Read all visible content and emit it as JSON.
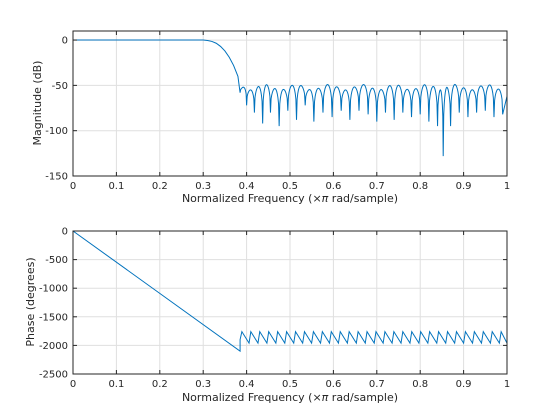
{
  "chart_data": [
    {
      "type": "line",
      "xlabel_parts": [
        "Normalized Frequency  (",
        "×π",
        " rad/sample)"
      ],
      "ylabel": "Magnitude (dB)",
      "xlim": [
        0,
        1
      ],
      "ylim": [
        -150,
        10
      ],
      "xticks": [
        0,
        0.1,
        0.2,
        0.3,
        0.4,
        0.5,
        0.6,
        0.7,
        0.8,
        0.9,
        1
      ],
      "xtick_labels": [
        "0",
        "0.1",
        "0.2",
        "0.3",
        "0.4",
        "0.5",
        "0.6",
        "0.7",
        "0.8",
        "0.9",
        "1"
      ],
      "yticks": [
        -150,
        -100,
        -50,
        0
      ],
      "ytick_labels": [
        "-150",
        "-100",
        "-50",
        "0"
      ],
      "grid": true,
      "series_color": "#0072bd",
      "passband": {
        "x": [
          0,
          0.3
        ],
        "y": 0
      },
      "transition": {
        "x": [
          0.3,
          0.31,
          0.32,
          0.33,
          0.34,
          0.35,
          0.36,
          0.37,
          0.38,
          0.385
        ],
        "y": [
          0,
          -0.5,
          -1.5,
          -3.5,
          -7,
          -12,
          -19,
          -28,
          -40,
          -58
        ]
      },
      "stopband_minima": {
        "x": [
          0.385,
          0.4,
          0.418,
          0.437,
          0.455,
          0.475,
          0.495,
          0.515,
          0.535,
          0.555,
          0.576,
          0.597,
          0.618,
          0.638,
          0.659,
          0.68,
          0.7,
          0.72,
          0.74,
          0.76,
          0.78,
          0.8,
          0.82,
          0.84,
          0.853,
          0.87,
          0.89,
          0.91,
          0.93,
          0.95,
          0.97,
          0.99
        ],
        "y": [
          -58,
          -72,
          -80,
          -92,
          -80,
          -95,
          -78,
          -88,
          -72,
          -90,
          -80,
          -85,
          -78,
          -88,
          -78,
          -82,
          -90,
          -80,
          -88,
          -80,
          -85,
          -82,
          -90,
          -95,
          -128,
          -95,
          -80,
          -85,
          -80,
          -78,
          -85,
          -82
        ]
      },
      "stopband_peak_db": -52
    },
    {
      "type": "line",
      "xlabel_parts": [
        "Normalized Frequency  (",
        "×π",
        " rad/sample)"
      ],
      "ylabel": "Phase (degrees)",
      "xlim": [
        0,
        1
      ],
      "ylim": [
        -2500,
        0
      ],
      "xticks": [
        0,
        0.1,
        0.2,
        0.3,
        0.4,
        0.5,
        0.6,
        0.7,
        0.8,
        0.9,
        1
      ],
      "xtick_labels": [
        "0",
        "0.1",
        "0.2",
        "0.3",
        "0.4",
        "0.5",
        "0.6",
        "0.7",
        "0.8",
        "0.9",
        "1"
      ],
      "yticks": [
        -2500,
        -2000,
        -1500,
        -1000,
        -500,
        0
      ],
      "ytick_labels": [
        "-2500",
        "-2000",
        "-1500",
        "-1000",
        "-500",
        "0"
      ],
      "grid": true,
      "series_color": "#0072bd",
      "linear_segment": {
        "x": [
          0,
          0.385
        ],
        "y": [
          0,
          -2100
        ]
      },
      "sawtooth": {
        "x_start": 0.385,
        "x_end": 1.0,
        "period": 0.0206,
        "high": -1760,
        "low": -1960
      }
    }
  ]
}
